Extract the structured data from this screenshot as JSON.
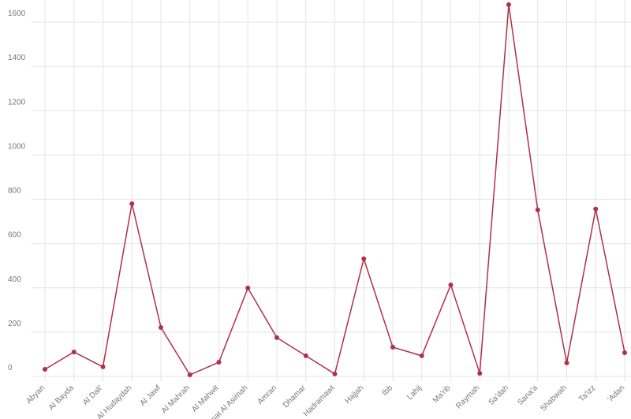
{
  "chart_data": {
    "type": "line",
    "categories": [
      "Abyan",
      "Al Bayda",
      "Al Dali'",
      "Al Hudaydah",
      "Al Jawf",
      "Al Mahrah",
      "Al Mahwit",
      "Amanat Al Asimah",
      "Amran",
      "Dhamar",
      "Hadramawt",
      "Hajjah",
      "Ibb",
      "Lahij",
      "Ma'rib",
      "Raymah",
      "Sa'dah",
      "Sana'a",
      "Shabwah",
      "Ta'izz",
      "'Adan"
    ],
    "series": [
      {
        "color": "#b0304a",
        "values": [
          32,
          110,
          43,
          780,
          221,
          7,
          64,
          399,
          175,
          93,
          11,
          531,
          132,
          93,
          413,
          14,
          1679,
          752,
          61,
          756,
          107
        ]
      }
    ],
    "ylim": [
      0,
      1600
    ],
    "yticks": [
      0,
      200,
      400,
      600,
      800,
      1000,
      1200,
      1400,
      1600
    ],
    "grid": true
  }
}
